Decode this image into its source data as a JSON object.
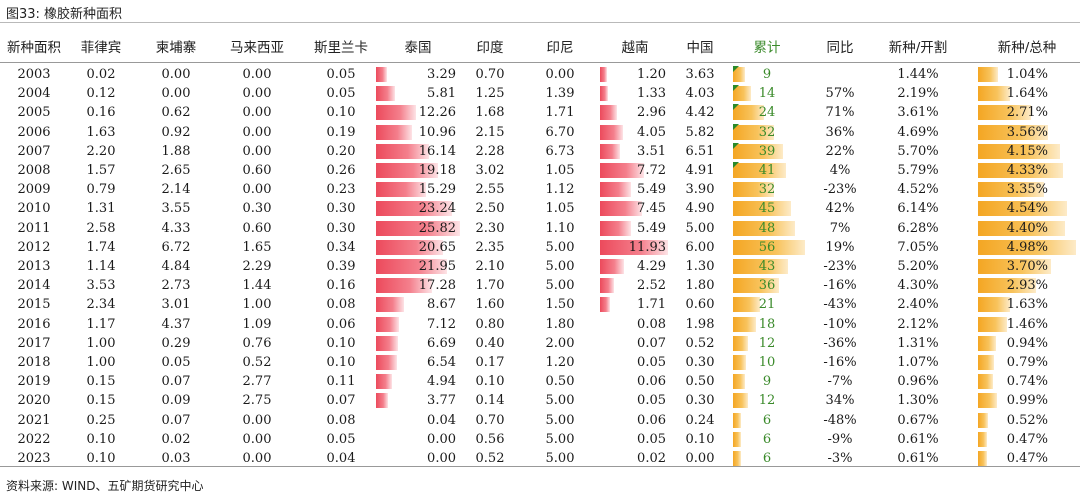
{
  "title": "图33: 橡胶新种面积",
  "source": "资料来源: WIND、五矿期货研究中心",
  "headers": [
    "新种面积",
    "菲律宾",
    "柬埔寨",
    "马来西亚",
    "斯里兰卡",
    "泰国",
    "印度",
    "印尼",
    "越南",
    "中国",
    "累计",
    "同比",
    "新种/开割",
    "新种/总种"
  ],
  "colors": {
    "red_bar": "#ec4a5c",
    "orange_bar": "#f4a623",
    "green_text": "#3a8a2a"
  },
  "rows": [
    {
      "year": "2003",
      "ph": "0.02",
      "kh": "0.00",
      "my": "0.00",
      "lk": "0.05",
      "th": "3.29",
      "in": "0.70",
      "id": "0.00",
      "vn": "1.20",
      "cn": "3.63",
      "cum": "9",
      "yoy": "",
      "new_tap": "1.44%",
      "new_total": "1.04%"
    },
    {
      "year": "2004",
      "ph": "0.12",
      "kh": "0.00",
      "my": "0.00",
      "lk": "0.05",
      "th": "5.81",
      "in": "1.25",
      "id": "1.39",
      "vn": "1.33",
      "cn": "4.03",
      "cum": "14",
      "yoy": "57%",
      "new_tap": "2.19%",
      "new_total": "1.64%"
    },
    {
      "year": "2005",
      "ph": "0.16",
      "kh": "0.62",
      "my": "0.00",
      "lk": "0.10",
      "th": "12.26",
      "in": "1.68",
      "id": "1.71",
      "vn": "2.96",
      "cn": "4.42",
      "cum": "24",
      "yoy": "71%",
      "new_tap": "3.61%",
      "new_total": "2.71%"
    },
    {
      "year": "2006",
      "ph": "1.63",
      "kh": "0.92",
      "my": "0.00",
      "lk": "0.19",
      "th": "10.96",
      "in": "2.15",
      "id": "6.70",
      "vn": "4.05",
      "cn": "5.82",
      "cum": "32",
      "yoy": "36%",
      "new_tap": "4.69%",
      "new_total": "3.56%"
    },
    {
      "year": "2007",
      "ph": "2.20",
      "kh": "1.88",
      "my": "0.00",
      "lk": "0.20",
      "th": "16.14",
      "in": "2.28",
      "id": "6.73",
      "vn": "3.51",
      "cn": "6.51",
      "cum": "39",
      "yoy": "22%",
      "new_tap": "5.70%",
      "new_total": "4.15%"
    },
    {
      "year": "2008",
      "ph": "1.57",
      "kh": "2.65",
      "my": "0.60",
      "lk": "0.26",
      "th": "19.18",
      "in": "3.02",
      "id": "1.05",
      "vn": "7.72",
      "cn": "4.91",
      "cum": "41",
      "yoy": "4%",
      "new_tap": "5.79%",
      "new_total": "4.33%"
    },
    {
      "year": "2009",
      "ph": "0.79",
      "kh": "2.14",
      "my": "0.00",
      "lk": "0.23",
      "th": "15.29",
      "in": "2.55",
      "id": "1.12",
      "vn": "5.49",
      "cn": "3.90",
      "cum": "32",
      "yoy": "-23%",
      "new_tap": "4.52%",
      "new_total": "3.35%"
    },
    {
      "year": "2010",
      "ph": "1.31",
      "kh": "3.55",
      "my": "0.30",
      "lk": "0.30",
      "th": "23.24",
      "in": "2.50",
      "id": "1.05",
      "vn": "7.45",
      "cn": "4.90",
      "cum": "45",
      "yoy": "42%",
      "new_tap": "6.14%",
      "new_total": "4.54%"
    },
    {
      "year": "2011",
      "ph": "2.58",
      "kh": "4.33",
      "my": "0.60",
      "lk": "0.30",
      "th": "25.82",
      "in": "2.30",
      "id": "1.10",
      "vn": "5.49",
      "cn": "5.00",
      "cum": "48",
      "yoy": "7%",
      "new_tap": "6.28%",
      "new_total": "4.40%"
    },
    {
      "year": "2012",
      "ph": "1.74",
      "kh": "6.72",
      "my": "1.65",
      "lk": "0.34",
      "th": "20.65",
      "in": "2.35",
      "id": "5.00",
      "vn": "11.93",
      "cn": "6.00",
      "cum": "56",
      "yoy": "19%",
      "new_tap": "7.05%",
      "new_total": "4.98%"
    },
    {
      "year": "2013",
      "ph": "1.14",
      "kh": "4.84",
      "my": "2.29",
      "lk": "0.39",
      "th": "21.95",
      "in": "2.10",
      "id": "5.00",
      "vn": "4.29",
      "cn": "1.30",
      "cum": "43",
      "yoy": "-23%",
      "new_tap": "5.20%",
      "new_total": "3.70%"
    },
    {
      "year": "2014",
      "ph": "3.53",
      "kh": "2.73",
      "my": "1.44",
      "lk": "0.16",
      "th": "17.28",
      "in": "1.70",
      "id": "5.00",
      "vn": "2.52",
      "cn": "1.80",
      "cum": "36",
      "yoy": "-16%",
      "new_tap": "4.30%",
      "new_total": "2.93%"
    },
    {
      "year": "2015",
      "ph": "2.34",
      "kh": "3.01",
      "my": "1.00",
      "lk": "0.08",
      "th": "8.67",
      "in": "1.60",
      "id": "1.50",
      "vn": "1.71",
      "cn": "0.60",
      "cum": "21",
      "yoy": "-43%",
      "new_tap": "2.40%",
      "new_total": "1.63%"
    },
    {
      "year": "2016",
      "ph": "1.17",
      "kh": "4.37",
      "my": "1.09",
      "lk": "0.06",
      "th": "7.12",
      "in": "0.80",
      "id": "1.80",
      "vn": "0.08",
      "cn": "1.98",
      "cum": "18",
      "yoy": "-10%",
      "new_tap": "2.12%",
      "new_total": "1.46%"
    },
    {
      "year": "2017",
      "ph": "1.00",
      "kh": "0.29",
      "my": "0.76",
      "lk": "0.10",
      "th": "6.69",
      "in": "0.40",
      "id": "2.00",
      "vn": "0.07",
      "cn": "0.52",
      "cum": "12",
      "yoy": "-36%",
      "new_tap": "1.31%",
      "new_total": "0.94%"
    },
    {
      "year": "2018",
      "ph": "1.00",
      "kh": "0.05",
      "my": "0.52",
      "lk": "0.10",
      "th": "6.54",
      "in": "0.17",
      "id": "1.20",
      "vn": "0.05",
      "cn": "0.30",
      "cum": "10",
      "yoy": "-16%",
      "new_tap": "1.07%",
      "new_total": "0.79%"
    },
    {
      "year": "2019",
      "ph": "0.15",
      "kh": "0.07",
      "my": "2.77",
      "lk": "0.11",
      "th": "4.94",
      "in": "0.10",
      "id": "0.50",
      "vn": "0.06",
      "cn": "0.50",
      "cum": "9",
      "yoy": "-7%",
      "new_tap": "0.96%",
      "new_total": "0.74%"
    },
    {
      "year": "2020",
      "ph": "0.15",
      "kh": "0.09",
      "my": "2.75",
      "lk": "0.07",
      "th": "3.77",
      "in": "0.14",
      "id": "5.00",
      "vn": "0.05",
      "cn": "0.30",
      "cum": "12",
      "yoy": "34%",
      "new_tap": "1.30%",
      "new_total": "0.99%"
    },
    {
      "year": "2021",
      "ph": "0.25",
      "kh": "0.07",
      "my": "0.00",
      "lk": "0.08",
      "th": "0.04",
      "in": "0.70",
      "id": "5.00",
      "vn": "0.06",
      "cn": "0.24",
      "cum": "6",
      "yoy": "-48%",
      "new_tap": "0.67%",
      "new_total": "0.52%"
    },
    {
      "year": "2022",
      "ph": "0.10",
      "kh": "0.02",
      "my": "0.00",
      "lk": "0.05",
      "th": "0.00",
      "in": "0.56",
      "id": "5.00",
      "vn": "0.05",
      "cn": "0.10",
      "cum": "6",
      "yoy": "-9%",
      "new_tap": "0.61%",
      "new_total": "0.47%"
    },
    {
      "year": "2023",
      "ph": "0.10",
      "kh": "0.03",
      "my": "0.00",
      "lk": "0.04",
      "th": "0.00",
      "in": "0.52",
      "id": "5.00",
      "vn": "0.02",
      "cn": "0.00",
      "cum": "6",
      "yoy": "-3%",
      "new_tap": "0.61%",
      "new_total": "0.47%"
    }
  ]
}
